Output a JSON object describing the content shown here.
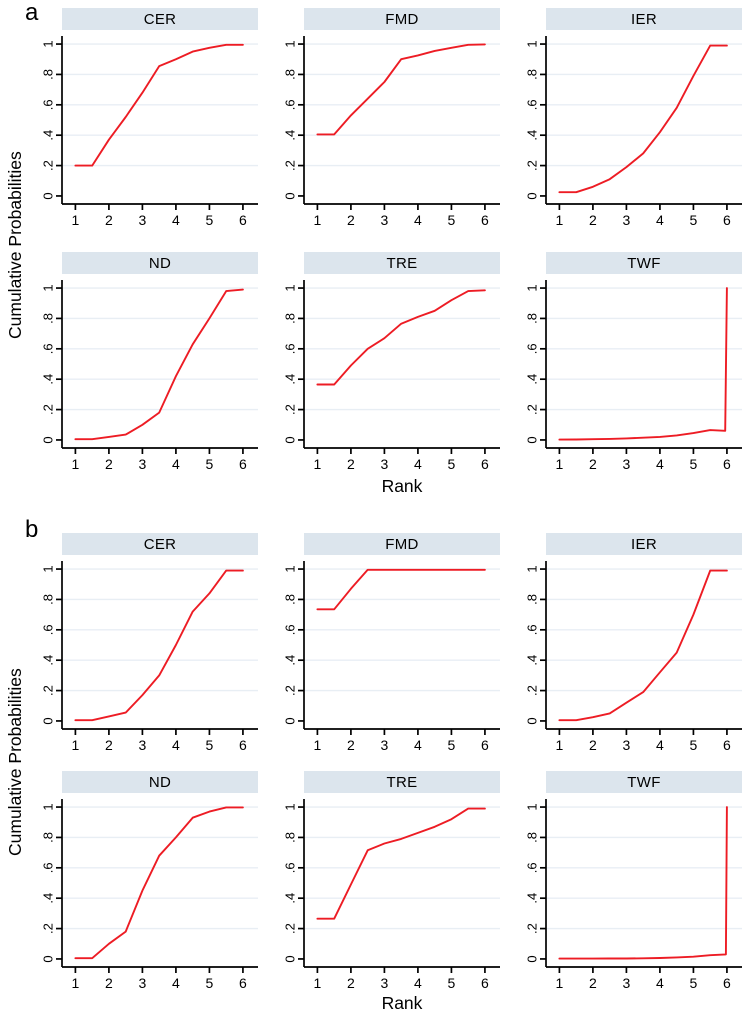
{
  "figure": {
    "line_color": "#ed1c24",
    "header_bg": "#dce5ed",
    "grid_color": "#e8eef4",
    "axis_color": "#000000",
    "plot_bg": "#ffffff"
  },
  "chart_data": {
    "type": "line",
    "xlabel": "Rank",
    "ylabel": "Cumulative Probabilities",
    "x_ticks": [
      1,
      2,
      3,
      4,
      5,
      6
    ],
    "y_ticks": [
      0,
      0.2,
      0.4,
      0.6,
      0.8,
      1
    ],
    "y_tick_labels": [
      "0",
      ".2",
      ".4",
      ".6",
      ".8",
      "1"
    ],
    "xlim": [
      0.6,
      6.45
    ],
    "ylim": [
      -0.053,
      1.053
    ],
    "grid": "horizontal-only",
    "legend": "none",
    "panels": [
      {
        "label": "a",
        "subplots": [
          {
            "title": "CER",
            "points": [
              [
                1,
                0.2
              ],
              [
                1.5,
                0.2
              ],
              [
                2,
                0.37
              ],
              [
                2.5,
                0.52
              ],
              [
                3,
                0.68
              ],
              [
                3.5,
                0.855
              ],
              [
                4,
                0.9
              ],
              [
                4.5,
                0.95
              ],
              [
                5,
                0.975
              ],
              [
                5.5,
                0.995
              ],
              [
                6,
                0.995
              ]
            ]
          },
          {
            "title": "FMD",
            "points": [
              [
                1,
                0.405
              ],
              [
                1.5,
                0.405
              ],
              [
                2,
                0.53
              ],
              [
                2.5,
                0.64
              ],
              [
                3,
                0.75
              ],
              [
                3.5,
                0.9
              ],
              [
                4,
                0.925
              ],
              [
                4.5,
                0.955
              ],
              [
                5,
                0.975
              ],
              [
                5.5,
                0.995
              ],
              [
                6,
                0.998
              ]
            ]
          },
          {
            "title": "IER",
            "points": [
              [
                1,
                0.025
              ],
              [
                1.5,
                0.025
              ],
              [
                2,
                0.06
              ],
              [
                2.5,
                0.11
              ],
              [
                3,
                0.19
              ],
              [
                3.5,
                0.28
              ],
              [
                4,
                0.42
              ],
              [
                4.5,
                0.58
              ],
              [
                5,
                0.79
              ],
              [
                5.5,
                0.99
              ],
              [
                6,
                0.99
              ]
            ]
          },
          {
            "title": "ND",
            "points": [
              [
                1,
                0.005
              ],
              [
                1.5,
                0.005
              ],
              [
                2,
                0.02
              ],
              [
                2.5,
                0.035
              ],
              [
                3,
                0.1
              ],
              [
                3.5,
                0.18
              ],
              [
                4,
                0.42
              ],
              [
                4.5,
                0.63
              ],
              [
                5,
                0.8
              ],
              [
                5.5,
                0.98
              ],
              [
                6,
                0.99
              ]
            ]
          },
          {
            "title": "TRE",
            "points": [
              [
                1,
                0.365
              ],
              [
                1.5,
                0.365
              ],
              [
                2,
                0.49
              ],
              [
                2.5,
                0.6
              ],
              [
                3,
                0.67
              ],
              [
                3.5,
                0.765
              ],
              [
                4,
                0.81
              ],
              [
                4.5,
                0.85
              ],
              [
                5,
                0.92
              ],
              [
                5.5,
                0.98
              ],
              [
                6,
                0.985
              ]
            ]
          },
          {
            "title": "TWF",
            "points": [
              [
                1,
                0.002
              ],
              [
                1.5,
                0.003
              ],
              [
                2,
                0.005
              ],
              [
                2.5,
                0.007
              ],
              [
                3,
                0.01
              ],
              [
                3.5,
                0.015
              ],
              [
                4,
                0.02
              ],
              [
                4.5,
                0.03
              ],
              [
                5,
                0.045
              ],
              [
                5.5,
                0.065
              ],
              [
                5.95,
                0.06
              ],
              [
                6,
                1.0
              ]
            ]
          }
        ]
      },
      {
        "label": "b",
        "subplots": [
          {
            "title": "CER",
            "points": [
              [
                1,
                0.005
              ],
              [
                1.5,
                0.005
              ],
              [
                2,
                0.03
              ],
              [
                2.5,
                0.055
              ],
              [
                3,
                0.17
              ],
              [
                3.5,
                0.3
              ],
              [
                4,
                0.5
              ],
              [
                4.5,
                0.72
              ],
              [
                5,
                0.84
              ],
              [
                5.5,
                0.99
              ],
              [
                6,
                0.99
              ]
            ]
          },
          {
            "title": "FMD",
            "points": [
              [
                1,
                0.735
              ],
              [
                1.5,
                0.735
              ],
              [
                2,
                0.87
              ],
              [
                2.5,
                0.995
              ],
              [
                3,
                0.995
              ],
              [
                3.5,
                0.995
              ],
              [
                4,
                0.995
              ],
              [
                4.5,
                0.995
              ],
              [
                5,
                0.995
              ],
              [
                5.5,
                0.995
              ],
              [
                6,
                0.995
              ]
            ]
          },
          {
            "title": "IER",
            "points": [
              [
                1,
                0.005
              ],
              [
                1.5,
                0.005
              ],
              [
                2,
                0.025
              ],
              [
                2.5,
                0.05
              ],
              [
                3,
                0.12
              ],
              [
                3.5,
                0.19
              ],
              [
                4,
                0.32
              ],
              [
                4.5,
                0.45
              ],
              [
                5,
                0.7
              ],
              [
                5.5,
                0.99
              ],
              [
                6,
                0.99
              ]
            ]
          },
          {
            "title": "ND",
            "points": [
              [
                1,
                0.005
              ],
              [
                1.5,
                0.005
              ],
              [
                2,
                0.1
              ],
              [
                2.5,
                0.18
              ],
              [
                3,
                0.45
              ],
              [
                3.5,
                0.68
              ],
              [
                4,
                0.8
              ],
              [
                4.5,
                0.93
              ],
              [
                5,
                0.97
              ],
              [
                5.5,
                0.998
              ],
              [
                6,
                0.998
              ]
            ]
          },
          {
            "title": "TRE",
            "points": [
              [
                1,
                0.265
              ],
              [
                1.5,
                0.265
              ],
              [
                2,
                0.49
              ],
              [
                2.5,
                0.715
              ],
              [
                3,
                0.76
              ],
              [
                3.5,
                0.79
              ],
              [
                4,
                0.83
              ],
              [
                4.5,
                0.87
              ],
              [
                5,
                0.92
              ],
              [
                5.5,
                0.99
              ],
              [
                6,
                0.99
              ]
            ]
          },
          {
            "title": "TWF",
            "points": [
              [
                1,
                0.002
              ],
              [
                1.5,
                0.002
              ],
              [
                2,
                0.002
              ],
              [
                2.5,
                0.003
              ],
              [
                3,
                0.003
              ],
              [
                3.5,
                0.004
              ],
              [
                4,
                0.006
              ],
              [
                4.5,
                0.01
              ],
              [
                5,
                0.015
              ],
              [
                5.5,
                0.025
              ],
              [
                5.97,
                0.03
              ],
              [
                6,
                1.0
              ]
            ]
          }
        ]
      }
    ]
  }
}
